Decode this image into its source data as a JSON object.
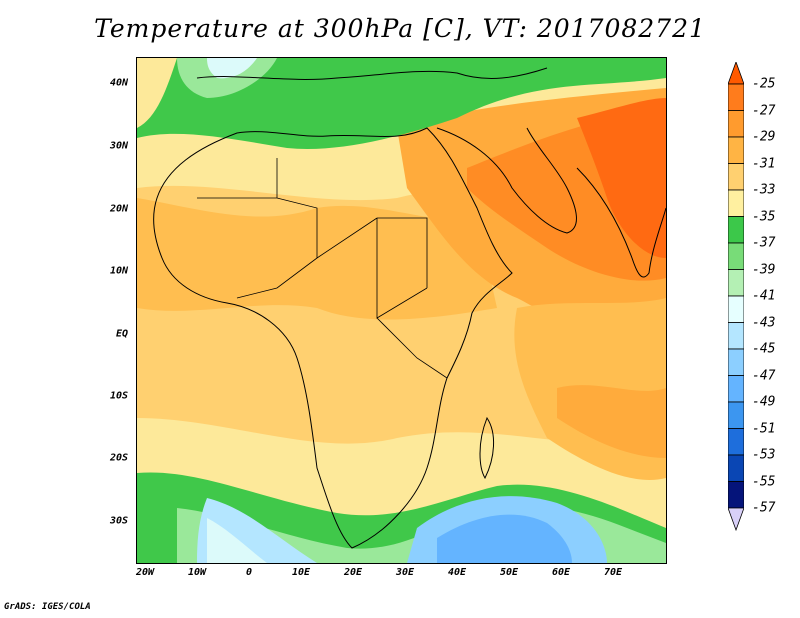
{
  "title": "Temperature at 300hPa [C], VT: 2017082721",
  "footer": "GrADS: IGES/COLA",
  "lat_labels": [
    "40N",
    "30N",
    "20N",
    "10N",
    "EQ",
    "10S",
    "20S",
    "30S"
  ],
  "lon_labels": [
    "20W",
    "10W",
    "0",
    "10E",
    "20E",
    "30E",
    "40E",
    "50E",
    "60E",
    "70E"
  ],
  "colorbar": {
    "labels": [
      "-25",
      "-27",
      "-29",
      "-31",
      "-33",
      "-35",
      "-37",
      "-39",
      "-41",
      "-43",
      "-45",
      "-47",
      "-49",
      "-51",
      "-53",
      "-55",
      "-57"
    ],
    "colors": [
      "#ff5a00",
      "#ff7c1c",
      "#ff9b2e",
      "#ffb444",
      "#ffd070",
      "#fff0a0",
      "#3cc84a",
      "#78dc78",
      "#b4f0b4",
      "#e6ffff",
      "#b4e6ff",
      "#8ccfff",
      "#64b4ff",
      "#3c96f0",
      "#1e6edc",
      "#0a46b4",
      "#05147a"
    ]
  },
  "colors": {
    "warm_core": "#ff6a12",
    "warm": "#ffab3c",
    "mid": "#ffc860",
    "light": "#fde99a",
    "green": "#40c84a",
    "lightgreen": "#9ae89a",
    "cyan": "#dcfafa",
    "blue": "#6aaeff"
  }
}
